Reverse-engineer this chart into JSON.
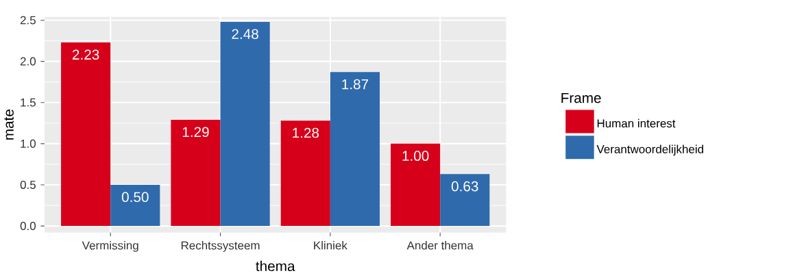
{
  "chart_data": {
    "type": "bar",
    "xlabel": "thema",
    "ylabel": "mate",
    "legend_title": "Frame",
    "categories": [
      "Vermissing",
      "Rechtssysteem",
      "Kliniek",
      "Ander thema"
    ],
    "series": [
      {
        "name": "Human interest",
        "color": "#d7001b",
        "values": [
          2.23,
          1.29,
          1.28,
          1.0
        ],
        "value_labels": [
          "2.23",
          "1.29",
          "1.28",
          "1.00"
        ]
      },
      {
        "name": "Verantwoordelijkheid",
        "color": "#2f6aac",
        "values": [
          0.5,
          2.48,
          1.87,
          0.63
        ],
        "value_labels": [
          "0.50",
          "2.48",
          "1.87",
          "0.63"
        ]
      }
    ],
    "ylim": [
      -0.08,
      2.54
    ],
    "yticks": [
      {
        "value": 0,
        "label": "0.0"
      },
      0.5,
      {
        "value": 1,
        "label": "1.0"
      },
      1.5,
      {
        "value": 2,
        "label": "2.0"
      },
      2.5
    ],
    "grid": true,
    "legend": "right"
  }
}
